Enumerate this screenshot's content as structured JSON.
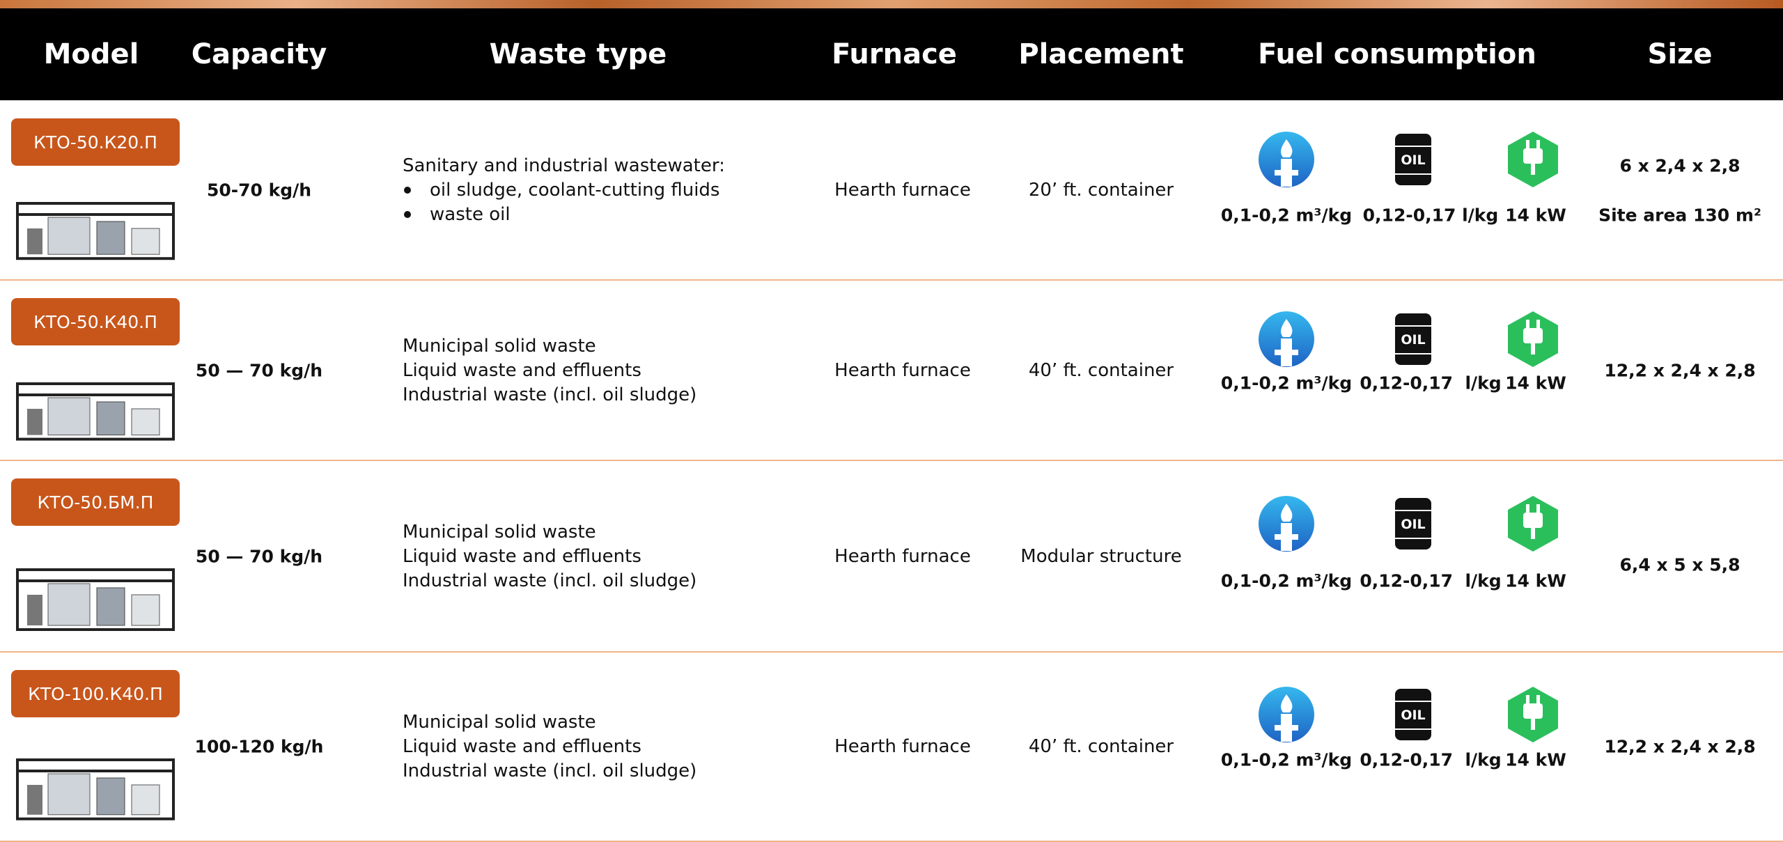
{
  "header": {
    "columns": [
      "Model",
      "Capacity",
      "Waste type",
      "Furnace",
      "Placement",
      "Fuel consumption",
      "Size"
    ]
  },
  "icons": {
    "oil_label": "OIL"
  },
  "rows": [
    {
      "model": "КТО-50.К20.П",
      "capacity": "50-70 kg/h",
      "waste_type": {
        "intro": "Sanitary and industrial wastewater:",
        "bullets": [
          "oil sludge, coolant-cutting fluids",
          "waste oil"
        ]
      },
      "furnace": "Hearth furnace",
      "placement": "20’ ft. container",
      "fuel": {
        "gas": "0,1-0,2 m³/kg",
        "oil": "0,12-0,17 l/kg",
        "electricity": "14 kW"
      },
      "size": [
        "6 x 2,4 x 2,8",
        "Site area 130 m²"
      ]
    },
    {
      "model": "КТО-50.К40.П",
      "capacity": "50 — 70 kg/h",
      "waste_type": {
        "lines": [
          "Municipal solid waste",
          "Liquid waste and effluents",
          "Industrial waste (incl. oil sludge)"
        ]
      },
      "furnace": "Hearth furnace",
      "placement": "40’ ft. container",
      "fuel": {
        "gas": "0,1-0,2 m³/kg",
        "oil": "0,12-0,17  l/kg",
        "electricity": "14 kW"
      },
      "size": [
        "12,2 x 2,4 x 2,8"
      ]
    },
    {
      "model": "КТО-50.БМ.П",
      "capacity": "50 — 70 kg/h",
      "waste_type": {
        "lines": [
          "Municipal solid waste",
          "Liquid waste and effluents",
          "Industrial waste (incl. oil sludge)"
        ]
      },
      "furnace": "Hearth furnace",
      "placement": "Modular structure",
      "fuel": {
        "gas": "0,1-0,2 m³/kg",
        "oil": "0,12-0,17  l/kg",
        "electricity": "14 kW"
      },
      "size": [
        "6,4 x 5 x 5,8"
      ]
    },
    {
      "model": "КТО-100.К40.П",
      "capacity": "100-120 kg/h",
      "waste_type": {
        "lines": [
          "Municipal solid waste",
          "Liquid waste and effluents",
          "Industrial waste (incl. oil sludge)"
        ]
      },
      "furnace": "Hearth furnace",
      "placement": "40’ ft. container",
      "fuel": {
        "gas": "0,1-0,2 m³/kg",
        "oil": "0,12-0,17  l/kg",
        "electricity": "14 kW"
      },
      "size": [
        "12,2 x 2,4 x 2,8"
      ]
    }
  ]
}
